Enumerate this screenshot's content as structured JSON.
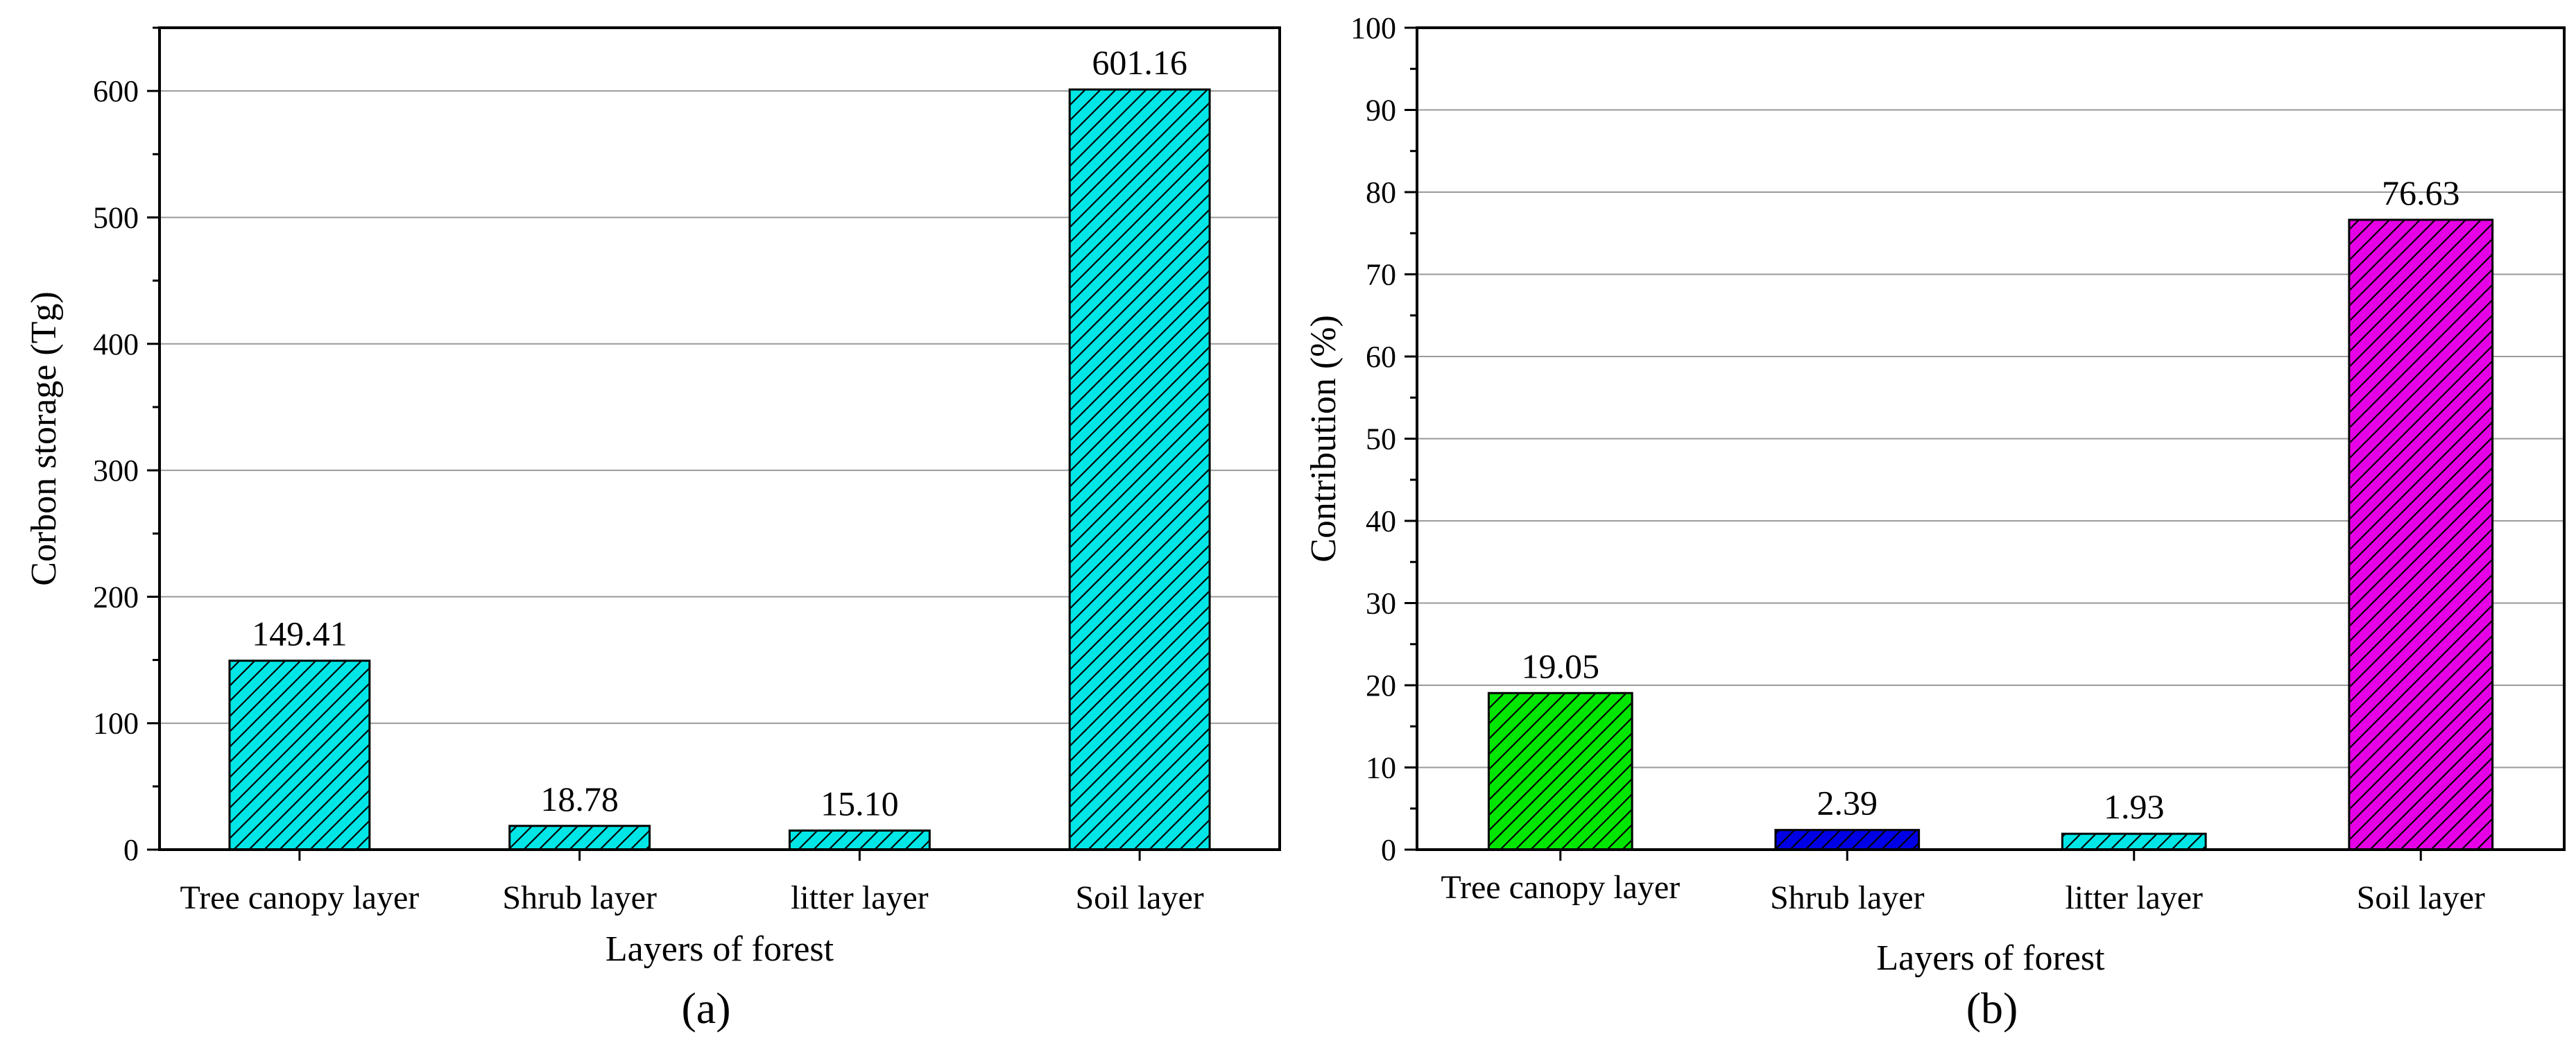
{
  "chart_data": [
    {
      "type": "bar",
      "panel": "(a)",
      "categories": [
        "Tree canopy layer",
        "Shrub layer",
        "litter layer",
        "Soil layer"
      ],
      "values": [
        149.41,
        18.78,
        15.1,
        601.16
      ],
      "value_labels": [
        "149.41",
        "18.78",
        "15.10",
        "601.16"
      ],
      "xlabel": "Layers of forest",
      "ylabel": "Corbon storage (Tg)",
      "ylim": [
        0,
        650
      ],
      "yticks": [
        0,
        100,
        200,
        300,
        400,
        500,
        600
      ],
      "grid": true,
      "bar_colors": [
        "#00e6e6",
        "#00e6e6",
        "#00e6e6",
        "#00e6e6"
      ],
      "hatch": "diagonal"
    },
    {
      "type": "bar",
      "panel": "(b)",
      "categories": [
        "Tree canopy layer",
        "Shrub layer",
        "litter layer",
        "Soil layer"
      ],
      "values": [
        19.05,
        2.39,
        1.93,
        76.63
      ],
      "value_labels": [
        "19.05",
        "2.39",
        "1.93",
        "76.63"
      ],
      "xlabel": "Layers of forest",
      "ylabel": "Contribution (%)",
      "ylim": [
        0,
        100
      ],
      "yticks": [
        0,
        10,
        20,
        30,
        40,
        50,
        60,
        70,
        80,
        90,
        100
      ],
      "grid": true,
      "bar_colors": [
        "#00e600",
        "#0000e6",
        "#00e6e6",
        "#e600e6"
      ],
      "hatch": "diagonal"
    }
  ]
}
